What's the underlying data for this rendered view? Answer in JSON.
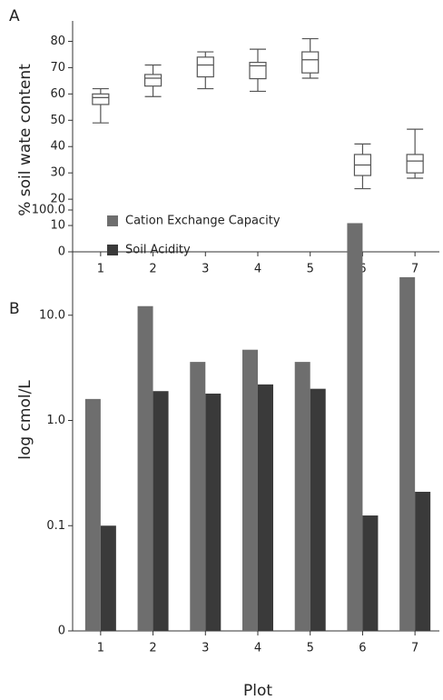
{
  "chart_data": [
    {
      "type": "box",
      "panel": "A",
      "ylabel": "% soil wate content",
      "categories": [
        "1",
        "2",
        "3",
        "4",
        "5",
        "6",
        "7"
      ],
      "whisker_low": [
        49,
        59,
        62,
        61,
        66,
        24,
        28
      ],
      "q1": [
        56,
        63,
        66.5,
        65.8,
        68,
        29,
        30
      ],
      "median": [
        58.6,
        66,
        71,
        70.7,
        73,
        33,
        34.5
      ],
      "q3": [
        60,
        67.4,
        74,
        72,
        76,
        37,
        37
      ],
      "whisker_high": [
        62,
        71,
        76,
        77,
        81,
        41,
        46.6
      ],
      "color": "#555555",
      "ylim": [
        0,
        85
      ],
      "yticks": [
        0,
        10,
        20,
        30,
        40,
        50,
        60,
        70,
        80
      ]
    },
    {
      "type": "bar",
      "panel": "B",
      "ylabel": "log cmol/L",
      "xlabel": "Plot",
      "yscale": "log",
      "legend": "upper left",
      "categories": [
        "1",
        "2",
        "3",
        "4",
        "5",
        "6",
        "7"
      ],
      "series": [
        {
          "name": "Cation Exchange Capacity",
          "color": "#6e6e6e",
          "values": [
            1.6,
            12.2,
            3.6,
            4.7,
            3.6,
            75,
            23
          ]
        },
        {
          "name": "Soil Acidity",
          "color": "#3a3a3a",
          "values": [
            0.1,
            1.9,
            1.8,
            2.2,
            2.0,
            0.125,
            0.21
          ]
        }
      ],
      "ylim": [
        0.01,
        100
      ],
      "yticks": [
        {
          "value": 0.01,
          "label": "0"
        },
        0.1,
        {
          "value": 1,
          "label": "1.0"
        },
        {
          "value": 10,
          "label": "10.0"
        },
        {
          "value": 100,
          "label": "100.0"
        }
      ]
    }
  ]
}
